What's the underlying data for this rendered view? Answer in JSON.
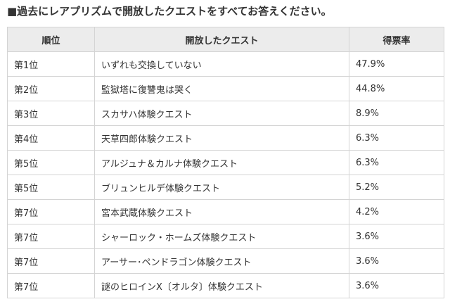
{
  "page": {
    "title": "■過去にレアプリズムで開放したクエストをすべてお答えください。"
  },
  "table": {
    "headers": {
      "rank": "順位",
      "quest": "開放したクエスト",
      "rate": "得票率"
    },
    "rows": [
      {
        "rank": "第1位",
        "quest": "いずれも交換していない",
        "rate": "47.9%"
      },
      {
        "rank": "第2位",
        "quest": "監獄塔に復讐鬼は哭く",
        "rate": "44.8%"
      },
      {
        "rank": "第3位",
        "quest": "スカサハ体験クエスト",
        "rate": "8.9%"
      },
      {
        "rank": "第4位",
        "quest": "天草四郎体験クエスト",
        "rate": "6.3%"
      },
      {
        "rank": "第5位",
        "quest": "アルジュナ＆カルナ体験クエスト",
        "rate": "6.3%"
      },
      {
        "rank": "第5位",
        "quest": "ブリュンヒルデ体験クエスト",
        "rate": "5.2%"
      },
      {
        "rank": "第7位",
        "quest": "宮本武蔵体験クエスト",
        "rate": "4.2%"
      },
      {
        "rank": "第7位",
        "quest": "シャーロック・ホームズ体験クエスト",
        "rate": "3.6%"
      },
      {
        "rank": "第7位",
        "quest": "アーサー･ペンドラゴン体験クエスト",
        "rate": "3.6%"
      },
      {
        "rank": "第7位",
        "quest": "謎のヒロインX〔オルタ〕体験クエスト",
        "rate": "3.6%"
      }
    ]
  }
}
